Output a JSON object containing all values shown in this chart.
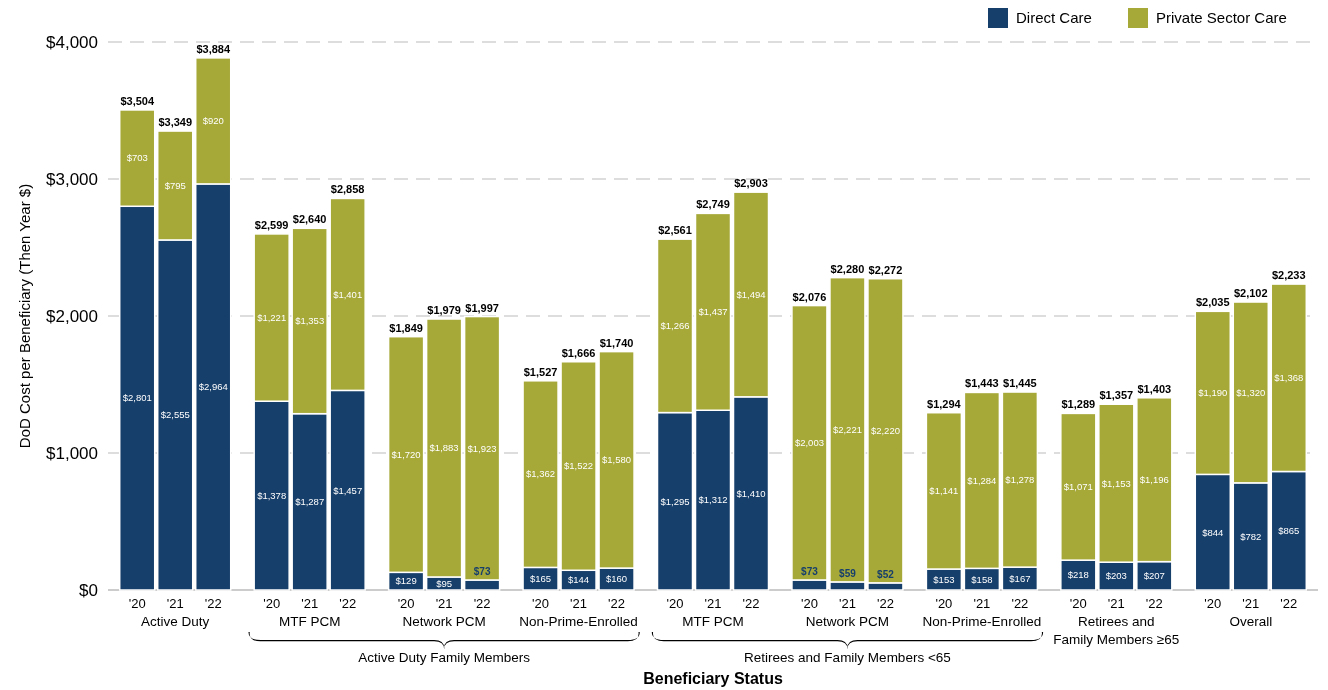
{
  "chart_data": {
    "type": "bar",
    "stacked": true,
    "xlabel": "Beneficiary Status",
    "ylabel": "DoD Cost per Beneficiary (Then Year $)",
    "categories": [
      "'20",
      "'21",
      "'22",
      "'20",
      "'21",
      "'22",
      "'20",
      "'21",
      "'22",
      "'20",
      "'21",
      "'22",
      "'20",
      "'21",
      "'22",
      "'20",
      "'21",
      "'22",
      "'20",
      "'21",
      "'22",
      "'20",
      "'21",
      "'22",
      "'20",
      "'21",
      "'22"
    ],
    "series": [
      {
        "name": "Direct Care",
        "color": "#173f6b",
        "values": [
          2801,
          2555,
          2964,
          1378,
          1287,
          1457,
          129,
          95,
          73,
          165,
          144,
          160,
          1295,
          1312,
          1410,
          73,
          59,
          52,
          153,
          158,
          167,
          218,
          203,
          207,
          844,
          782,
          865
        ],
        "value_labels": [
          "$2,801",
          "$2,555",
          "$2,964",
          "$1,378",
          "$1,287",
          "$1,457",
          "$129",
          "$95",
          "$73",
          "$165",
          "$144",
          "$160",
          "$1,295",
          "$1,312",
          "$1,410",
          "$73",
          "$59",
          "$52",
          "$153",
          "$158",
          "$167",
          "$218",
          "$203",
          "$207",
          "$844",
          "$782",
          "$865"
        ]
      },
      {
        "name": "Private Sector Care",
        "color": "#a6a838",
        "values": [
          703,
          795,
          920,
          1221,
          1353,
          1401,
          1720,
          1883,
          1923,
          1362,
          1522,
          1580,
          1266,
          1437,
          1494,
          2003,
          2221,
          2220,
          1141,
          1284,
          1278,
          1071,
          1153,
          1196,
          1190,
          1320,
          1368
        ],
        "value_labels": [
          "$703",
          "$795",
          "$920",
          "$1,221",
          "$1,353",
          "$1,401",
          "$1,720",
          "$1,883",
          "$1,923",
          "$1,362",
          "$1,522",
          "$1,580",
          "$1,266",
          "$1,437",
          "$1,494",
          "$2,003",
          "$2,221",
          "$2,220",
          "$1,141",
          "$1,284",
          "$1,278",
          "$1,071",
          "$1,153",
          "$1,196",
          "$1,190",
          "$1,320",
          "$1,368"
        ]
      }
    ],
    "totals": [
      "$3,504",
      "$3,349",
      "$3,884",
      "$2,599",
      "$2,640",
      "$2,858",
      "$1,849",
      "$1,979",
      "$1,997",
      "$1,527",
      "$1,666",
      "$1,740",
      "$2,561",
      "$2,749",
      "$2,903",
      "$2,076",
      "$2,280",
      "$2,272",
      "$1,294",
      "$1,443",
      "$1,445",
      "$1,289",
      "$1,357",
      "$1,403",
      "$2,035",
      "$2,102",
      "$2,233"
    ],
    "annotations": [
      "Active Duty",
      "MTF PCM",
      "Network PCM",
      "Non-Prime-Enrolled",
      "MTF PCM",
      "Network PCM",
      "Non-Prime-Enrolled",
      "Retirees and Family Members ≥65",
      "Overall",
      "Active Duty Family Members",
      "Retirees and Family Members <65"
    ],
    "ylim": [
      0,
      4000
    ],
    "yticks": [
      {
        "value": 0,
        "label": "$0"
      },
      {
        "value": 1000,
        "label": "$1,000"
      },
      {
        "value": 2000,
        "label": "$2,000"
      },
      {
        "value": 3000,
        "label": "$3,000"
      },
      {
        "value": 4000,
        "label": "$4,000"
      }
    ],
    "grid": "y",
    "legend": "top right"
  }
}
